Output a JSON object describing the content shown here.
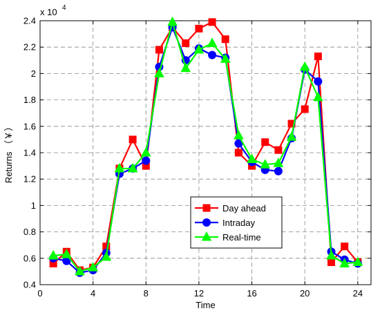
{
  "chart_data": {
    "type": "line",
    "xlabel": "Time",
    "ylabel": "Returns （￥）",
    "y_multiplier": {
      "base": "x 10",
      "exponent": "4"
    },
    "xlim": [
      0,
      25
    ],
    "ylim": [
      0.4,
      2.4
    ],
    "xticks": [
      0,
      4,
      8,
      12,
      16,
      20,
      24
    ],
    "xtick_labels": [
      "0",
      "4",
      "8",
      "12",
      "16",
      "20",
      "24"
    ],
    "yticks": [
      0.4,
      0.6,
      0.8,
      1.0,
      1.2,
      1.4,
      1.6,
      1.8,
      2.0,
      2.2,
      2.4
    ],
    "ytick_labels": [
      "0.4",
      "0.6",
      "0.8",
      "1",
      "1.2",
      "1.4",
      "1.6",
      "1.8",
      "2",
      "2.2",
      "2.4"
    ],
    "grid": true,
    "legend_position": "center-bottom",
    "x": [
      1,
      2,
      3,
      4,
      5,
      6,
      7,
      8,
      9,
      10,
      11,
      12,
      13,
      14,
      15,
      16,
      17,
      18,
      19,
      20,
      21,
      22,
      23,
      24
    ],
    "series": [
      {
        "name": "Day ahead",
        "color": "#ff0000",
        "marker": "square",
        "values": [
          0.56,
          0.65,
          0.51,
          0.53,
          0.69,
          1.28,
          1.5,
          1.3,
          2.18,
          2.35,
          2.23,
          2.34,
          2.39,
          2.26,
          1.4,
          1.3,
          1.48,
          1.42,
          1.62,
          1.73,
          2.13,
          0.57,
          0.69,
          0.57
        ]
      },
      {
        "name": "Intraday",
        "color": "#0000ff",
        "marker": "circle",
        "values": [
          0.6,
          0.58,
          0.49,
          0.51,
          0.64,
          1.24,
          1.28,
          1.34,
          2.05,
          2.35,
          2.1,
          2.19,
          2.14,
          2.12,
          1.47,
          1.33,
          1.27,
          1.26,
          1.51,
          2.03,
          1.94,
          0.65,
          0.59,
          0.56
        ]
      },
      {
        "name": "Real-time",
        "color": "#00ff00",
        "marker": "triangle",
        "values": [
          0.62,
          0.63,
          0.5,
          0.53,
          0.61,
          1.28,
          1.28,
          1.4,
          2.0,
          2.39,
          2.04,
          2.18,
          2.23,
          2.11,
          1.53,
          1.35,
          1.31,
          1.32,
          1.52,
          2.05,
          1.82,
          0.62,
          0.56,
          0.57
        ]
      }
    ]
  }
}
